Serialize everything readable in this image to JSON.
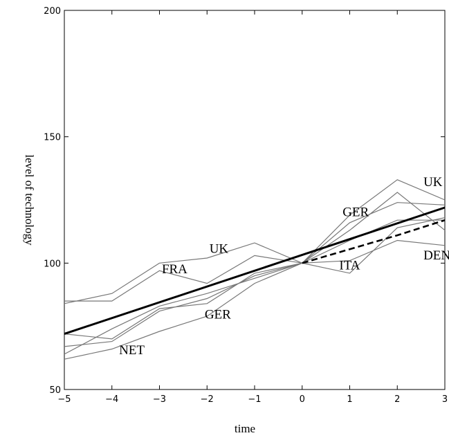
{
  "chart_data": {
    "type": "line",
    "xlabel": "time",
    "ylabel": "level of technology",
    "xlim": [
      -5,
      3
    ],
    "ylim": [
      50,
      200
    ],
    "xticks": [
      -5,
      -4,
      -3,
      -2,
      -1,
      0,
      1,
      2,
      3
    ],
    "yticks": [
      50,
      100,
      150,
      200
    ],
    "grid": false,
    "series": [
      {
        "style": "thin-gray",
        "x": [
          -5,
          -4,
          -3,
          -2,
          -1,
          0,
          1,
          2,
          3
        ],
        "y": [
          84,
          88,
          100,
          102,
          108,
          100,
          119,
          133,
          125
        ]
      },
      {
        "style": "thin-gray",
        "x": [
          -5,
          -4,
          -3,
          -2,
          -1,
          0,
          1,
          2,
          3
        ],
        "y": [
          85,
          85,
          97,
          92,
          103,
          100,
          113,
          128,
          113
        ]
      },
      {
        "style": "thin-gray",
        "x": [
          -5,
          -4,
          -3,
          -2,
          -1,
          0,
          1,
          2,
          3
        ],
        "y": [
          72,
          70,
          82,
          84,
          96,
          100,
          116,
          124,
          123
        ]
      },
      {
        "style": "thin-gray",
        "x": [
          -5,
          -4,
          -3,
          -2,
          -1,
          0,
          1,
          2,
          3
        ],
        "y": [
          67,
          69,
          81,
          86,
          95,
          100,
          109,
          117,
          117
        ]
      },
      {
        "style": "thin-gray",
        "x": [
          -5,
          -4,
          -3,
          -2,
          -1,
          0,
          1,
          2,
          3
        ],
        "y": [
          64,
          74,
          83,
          88,
          94,
          100,
          101,
          109,
          107
        ]
      },
      {
        "style": "thin-gray",
        "x": [
          -5,
          -4,
          -3,
          -2,
          -1,
          0,
          1,
          2,
          3
        ],
        "y": [
          62,
          66,
          73,
          79,
          92,
          100,
          96,
          114,
          118
        ]
      },
      {
        "style": "bold-solid",
        "x": [
          -5,
          3
        ],
        "y": [
          72,
          122
        ]
      },
      {
        "style": "bold-dashed",
        "x": [
          0,
          1,
          2,
          3
        ],
        "y": [
          100,
          105.5,
          111,
          117
        ]
      }
    ],
    "annotations": [
      {
        "text": "UK",
        "x": -1.95,
        "y": 104
      },
      {
        "text": "FRA",
        "x": -2.95,
        "y": 96
      },
      {
        "text": "GER",
        "x": -2.05,
        "y": 78
      },
      {
        "text": "NET",
        "x": -3.85,
        "y": 64
      },
      {
        "text": "GER",
        "x": 0.85,
        "y": 118.5
      },
      {
        "text": "ITA",
        "x": 0.78,
        "y": 97.5
      },
      {
        "text": "UK",
        "x": 2.55,
        "y": 130.5
      },
      {
        "text": "DEN",
        "x": 2.55,
        "y": 101.5
      }
    ]
  }
}
